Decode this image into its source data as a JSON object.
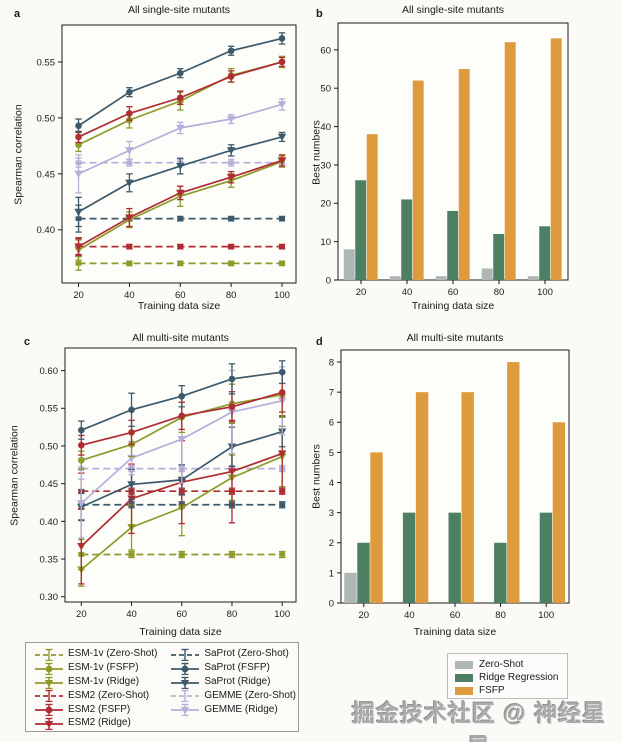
{
  "page": {
    "watermark": "掘金技术社区 @ 神经星星"
  },
  "colors": {
    "esm1v": "#8E9B2A",
    "esm2": "#AE2C32",
    "saprot": "#3C5A6B",
    "gemme": "#B7AEDC",
    "bar_gray": "#AEB7B5",
    "bar_green": "#4D7F63",
    "bar_orange": "#DE9B3D",
    "axis": "#1a1a1a",
    "plot_bg": "#fdfdf9"
  },
  "panels": {
    "a": {
      "letter": "a",
      "title": "All single-site mutants",
      "xlabel": "Training data size",
      "ylabel": "Spearman correlation"
    },
    "b": {
      "letter": "b",
      "title": "All single-site mutants",
      "xlabel": "Training data size",
      "ylabel": "Best numbers"
    },
    "c": {
      "letter": "c",
      "title": "All multi-site mutants",
      "xlabel": "Training data size",
      "ylabel": "Spearman correlation"
    },
    "d": {
      "letter": "d",
      "title": "All multi-site mutants",
      "xlabel": "Training data size",
      "ylabel": "Best numbers"
    }
  },
  "chart_data": [
    {
      "id": "a",
      "type": "line",
      "title": "All single-site mutants",
      "xlabel": "Training data size",
      "ylabel": "Spearman correlation",
      "x": [
        20,
        40,
        60,
        80,
        100
      ],
      "ylim": [
        0.3525,
        0.583
      ],
      "yticks": [
        0.4,
        0.45,
        0.5,
        0.55
      ],
      "grid": false,
      "legend_position": "bottom-outside",
      "series": [
        {
          "name": "ESM-1v (Zero-Shot)",
          "color": "esm1v",
          "style": "dashed",
          "marker": "square",
          "values": [
            0.37,
            0.37,
            0.37,
            0.37,
            0.37
          ],
          "err": [
            0.006,
            0.002,
            0.002,
            0.002,
            0.002
          ]
        },
        {
          "name": "ESM2 (Zero-Shot)",
          "color": "esm2",
          "style": "dashed",
          "marker": "square",
          "values": [
            0.385,
            0.385,
            0.385,
            0.385,
            0.385
          ],
          "err": [
            0.007,
            0.002,
            0.002,
            0.002,
            0.002
          ]
        },
        {
          "name": "SaProt (Zero-Shot)",
          "color": "saprot",
          "style": "dashed",
          "marker": "square",
          "values": [
            0.41,
            0.41,
            0.41,
            0.41,
            0.41
          ],
          "err": [
            0.012,
            0.002,
            0.002,
            0.002,
            0.002
          ]
        },
        {
          "name": "GEMME (Zero-Shot)",
          "color": "gemme",
          "style": "dashed",
          "marker": "square",
          "values": [
            0.46,
            0.46,
            0.46,
            0.46,
            0.46
          ],
          "err": [
            0.004,
            0.003,
            0.003,
            0.003,
            0.003
          ]
        },
        {
          "name": "ESM-1v (Ridge)",
          "color": "esm1v",
          "style": "solid",
          "marker": "tri",
          "values": [
            0.382,
            0.409,
            0.43,
            0.444,
            0.461
          ],
          "err": [
            0.009,
            0.007,
            0.009,
            0.006,
            0.005
          ]
        },
        {
          "name": "ESM2 (Ridge)",
          "color": "esm2",
          "style": "solid",
          "marker": "tri",
          "values": [
            0.385,
            0.411,
            0.433,
            0.447,
            0.462
          ],
          "err": [
            0.008,
            0.008,
            0.006,
            0.005,
            0.005
          ]
        },
        {
          "name": "SaProt (Ridge)",
          "color": "saprot",
          "style": "solid",
          "marker": "tri",
          "values": [
            0.416,
            0.442,
            0.457,
            0.471,
            0.483
          ],
          "err": [
            0.013,
            0.008,
            0.007,
            0.005,
            0.004
          ]
        },
        {
          "name": "GEMME (Ridge)",
          "color": "gemme",
          "style": "solid",
          "marker": "tri",
          "values": [
            0.45,
            0.471,
            0.491,
            0.499,
            0.512
          ],
          "err": [
            0.017,
            0.008,
            0.005,
            0.004,
            0.005
          ]
        },
        {
          "name": "ESM-1v (FSFP)",
          "color": "esm1v",
          "style": "solid",
          "marker": "circle",
          "values": [
            0.476,
            0.498,
            0.515,
            0.538,
            0.55
          ],
          "err": [
            0.006,
            0.007,
            0.008,
            0.006,
            0.005
          ]
        },
        {
          "name": "ESM2 (FSFP)",
          "color": "esm2",
          "style": "solid",
          "marker": "circle",
          "values": [
            0.483,
            0.504,
            0.518,
            0.537,
            0.55
          ],
          "err": [
            0.005,
            0.006,
            0.006,
            0.005,
            0.004
          ]
        },
        {
          "name": "SaProt (FSFP)",
          "color": "saprot",
          "style": "solid",
          "marker": "circle",
          "values": [
            0.493,
            0.523,
            0.54,
            0.56,
            0.571
          ],
          "err": [
            0.006,
            0.004,
            0.004,
            0.004,
            0.005
          ]
        }
      ]
    },
    {
      "id": "b",
      "type": "bar",
      "title": "All single-site mutants",
      "xlabel": "Training data size",
      "ylabel": "Best numbers",
      "categories": [
        20,
        40,
        60,
        80,
        100
      ],
      "ylim": [
        0,
        67
      ],
      "yticks": [
        0,
        10,
        20,
        30,
        40,
        50,
        60
      ],
      "grid": false,
      "legend_position": "bottom-outside",
      "series": [
        {
          "name": "Zero-Shot",
          "color": "bar_gray",
          "values": [
            8,
            1,
            1,
            3,
            1
          ]
        },
        {
          "name": "Ridge Regression",
          "color": "bar_green",
          "values": [
            26,
            21,
            18,
            12,
            14
          ]
        },
        {
          "name": "FSFP",
          "color": "bar_orange",
          "values": [
            38,
            52,
            55,
            62,
            63
          ]
        }
      ]
    },
    {
      "id": "c",
      "type": "line",
      "title": "All multi-site mutants",
      "xlabel": "Training data size",
      "ylabel": "Spearman correlation",
      "x": [
        20,
        40,
        60,
        80,
        100
      ],
      "ylim": [
        0.293,
        0.63
      ],
      "yticks": [
        0.3,
        0.35,
        0.4,
        0.45,
        0.5,
        0.55,
        0.6
      ],
      "grid": false,
      "legend_position": "bottom-outside",
      "series": [
        {
          "name": "ESM-1v (Zero-Shot)",
          "color": "esm1v",
          "style": "dashed",
          "marker": "square",
          "values": [
            0.356,
            0.356,
            0.356,
            0.356,
            0.356
          ],
          "err": [
            0.02,
            0.004,
            0.004,
            0.004,
            0.004
          ]
        },
        {
          "name": "ESM2 (Zero-Shot)",
          "color": "esm2",
          "style": "dashed",
          "marker": "square",
          "values": [
            0.44,
            0.44,
            0.44,
            0.44,
            0.44
          ],
          "err": [
            0.024,
            0.004,
            0.004,
            0.004,
            0.004
          ]
        },
        {
          "name": "SaProt (Zero-Shot)",
          "color": "saprot",
          "style": "dashed",
          "marker": "square",
          "values": [
            0.422,
            0.422,
            0.422,
            0.422,
            0.422
          ],
          "err": [
            0.02,
            0.004,
            0.004,
            0.004,
            0.004
          ]
        },
        {
          "name": "GEMME (Zero-Shot)",
          "color": "gemme",
          "style": "dashed",
          "marker": "square",
          "values": [
            0.47,
            0.47,
            0.47,
            0.47,
            0.47
          ],
          "err": [
            0.014,
            0.004,
            0.004,
            0.004,
            0.004
          ]
        },
        {
          "name": "ESM-1v (Ridge)",
          "color": "esm1v",
          "style": "solid",
          "marker": "tri",
          "values": [
            0.336,
            0.392,
            0.418,
            0.458,
            0.486
          ],
          "err": [
            0.022,
            0.03,
            0.037,
            0.03,
            0.04
          ]
        },
        {
          "name": "ESM2 (Ridge)",
          "color": "esm2",
          "style": "solid",
          "marker": "tri",
          "values": [
            0.367,
            0.43,
            0.452,
            0.466,
            0.49
          ],
          "err": [
            0.05,
            0.046,
            0.055,
            0.068,
            0.05
          ]
        },
        {
          "name": "SaProt (Ridge)",
          "color": "saprot",
          "style": "solid",
          "marker": "tri",
          "values": [
            0.419,
            0.449,
            0.455,
            0.499,
            0.519
          ],
          "err": [
            0.018,
            0.02,
            0.02,
            0.026,
            0.02
          ]
        },
        {
          "name": "GEMME (Ridge)",
          "color": "gemme",
          "style": "solid",
          "marker": "tri",
          "values": [
            0.424,
            0.484,
            0.509,
            0.545,
            0.56
          ],
          "err": [
            0.046,
            0.022,
            0.058,
            0.055,
            0.045
          ]
        },
        {
          "name": "ESM-1v (FSFP)",
          "color": "esm1v",
          "style": "solid",
          "marker": "circle",
          "values": [
            0.481,
            0.502,
            0.538,
            0.556,
            0.568
          ],
          "err": [
            0.012,
            0.016,
            0.02,
            0.026,
            0.03
          ]
        },
        {
          "name": "ESM2 (FSFP)",
          "color": "esm2",
          "style": "solid",
          "marker": "circle",
          "values": [
            0.501,
            0.518,
            0.54,
            0.552,
            0.571
          ],
          "err": [
            0.013,
            0.016,
            0.018,
            0.02,
            0.026
          ]
        },
        {
          "name": "SaProt (FSFP)",
          "color": "saprot",
          "style": "solid",
          "marker": "circle",
          "values": [
            0.521,
            0.548,
            0.566,
            0.589,
            0.598
          ],
          "err": [
            0.012,
            0.022,
            0.014,
            0.02,
            0.015
          ]
        }
      ]
    },
    {
      "id": "d",
      "type": "bar",
      "title": "All multi-site mutants",
      "xlabel": "Training data size",
      "ylabel": "Best numbers",
      "categories": [
        20,
        40,
        60,
        80,
        100
      ],
      "ylim": [
        0,
        8.4
      ],
      "yticks": [
        0,
        1,
        2,
        3,
        4,
        5,
        6,
        7,
        8
      ],
      "grid": false,
      "legend_position": "bottom-outside",
      "series": [
        {
          "name": "Zero-Shot",
          "color": "bar_gray",
          "values": [
            1,
            0,
            0,
            0,
            0
          ]
        },
        {
          "name": "Ridge Regression",
          "color": "bar_green",
          "values": [
            2,
            3,
            3,
            2,
            3
          ]
        },
        {
          "name": "FSFP",
          "color": "bar_orange",
          "values": [
            5,
            7,
            7,
            8,
            6
          ]
        }
      ]
    }
  ],
  "legend_lines": {
    "columns": [
      [
        {
          "label": "ESM-1v (Zero-Shot)",
          "color": "esm1v",
          "style": "dashed",
          "marker": "errbar"
        },
        {
          "label": "ESM-1v (FSFP)",
          "color": "esm1v",
          "style": "solid",
          "marker": "circle"
        },
        {
          "label": "ESM-1v (Ridge)",
          "color": "esm1v",
          "style": "solid",
          "marker": "tri"
        },
        {
          "label": "ESM2 (Zero-Shot)",
          "color": "esm2",
          "style": "dashed",
          "marker": "errbar"
        },
        {
          "label": "ESM2 (FSFP)",
          "color": "esm2",
          "style": "solid",
          "marker": "circle"
        },
        {
          "label": "ESM2 (Ridge)",
          "color": "esm2",
          "style": "solid",
          "marker": "tri"
        }
      ],
      [
        {
          "label": "SaProt (Zero-Shot)",
          "color": "saprot",
          "style": "dashed",
          "marker": "errbar"
        },
        {
          "label": "SaProt (FSFP)",
          "color": "saprot",
          "style": "solid",
          "marker": "circle"
        },
        {
          "label": "SaProt (Ridge)",
          "color": "saprot",
          "style": "solid",
          "marker": "tri"
        },
        {
          "label": "GEMME (Zero-Shot)",
          "color": "gemme",
          "style": "dashed",
          "marker": "errbar"
        },
        {
          "label": "GEMME (Ridge)",
          "color": "gemme",
          "style": "solid",
          "marker": "tri"
        }
      ]
    ]
  },
  "legend_bars": {
    "items": [
      {
        "label": "Zero-Shot",
        "color": "bar_gray"
      },
      {
        "label": "Ridge Regression",
        "color": "bar_green"
      },
      {
        "label": "FSFP",
        "color": "bar_orange"
      }
    ]
  }
}
